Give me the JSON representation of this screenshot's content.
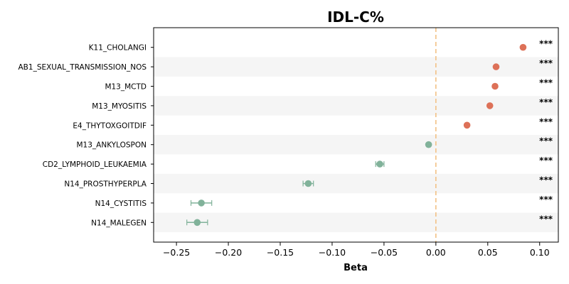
{
  "chart_data": {
    "type": "forest",
    "title": "IDL-C%",
    "xlabel": "Beta",
    "xlim": [
      -0.272,
      0.118
    ],
    "xticks": [
      -0.25,
      -0.2,
      -0.15,
      -0.1,
      -0.05,
      0.0,
      0.05,
      0.1
    ],
    "xtick_labels": [
      "−0.25",
      "−0.20",
      "−0.15",
      "−0.10",
      "−0.05",
      "0.00",
      "0.05",
      "0.10"
    ],
    "reference_line": 0,
    "grid": false,
    "colors": {
      "positive": "#dd7158",
      "negative": "#81b29a",
      "reference": "#f2c185",
      "band": "#f5f5f5"
    },
    "rows": [
      {
        "label": "K11_CHOLANGI",
        "beta": 0.084,
        "ci_low": 0.084,
        "ci_high": 0.084,
        "sig": "***"
      },
      {
        "label": "AB1_SEXUAL_TRANSMISSION_NOS",
        "beta": 0.058,
        "ci_low": 0.058,
        "ci_high": 0.058,
        "sig": "***"
      },
      {
        "label": "M13_MCTD",
        "beta": 0.057,
        "ci_low": 0.057,
        "ci_high": 0.057,
        "sig": "***"
      },
      {
        "label": "M13_MYOSITIS",
        "beta": 0.052,
        "ci_low": 0.052,
        "ci_high": 0.052,
        "sig": "***"
      },
      {
        "label": "E4_THYTOXGOITDIF",
        "beta": 0.03,
        "ci_low": 0.03,
        "ci_high": 0.03,
        "sig": "***"
      },
      {
        "label": "M13_ANKYLOSPON",
        "beta": -0.007,
        "ci_low": -0.007,
        "ci_high": -0.007,
        "sig": "***"
      },
      {
        "label": "CD2_LYMPHOID_LEUKAEMIA",
        "beta": -0.054,
        "ci_low": -0.058,
        "ci_high": -0.05,
        "sig": "***"
      },
      {
        "label": "N14_PROSTHYPERPLA",
        "beta": -0.123,
        "ci_low": -0.128,
        "ci_high": -0.118,
        "sig": "***"
      },
      {
        "label": "N14_CYSTITIS",
        "beta": -0.226,
        "ci_low": -0.236,
        "ci_high": -0.216,
        "sig": "***"
      },
      {
        "label": "N14_MALEGEN",
        "beta": -0.23,
        "ci_low": -0.24,
        "ci_high": -0.22,
        "sig": "***"
      }
    ]
  }
}
